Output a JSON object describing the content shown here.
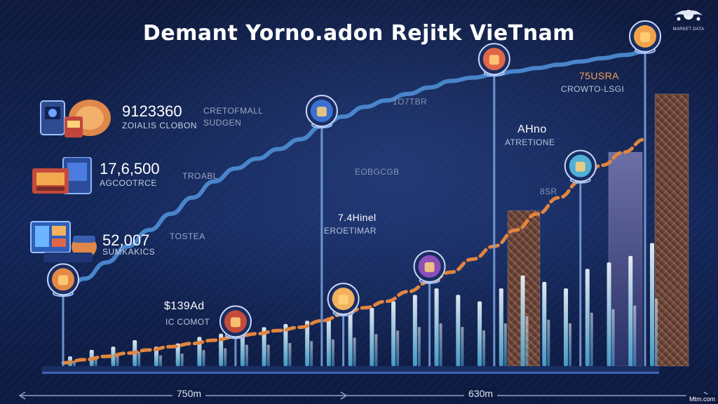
{
  "title": "Demant Yorno.adon Rejitk VieTnam",
  "brand": {
    "icon": "dragon-emblem-icon",
    "text": "MARKET DATA"
  },
  "stats": [
    {
      "value": "9123360",
      "label": "ZOIALIS CLOBON",
      "note": "CRETOFMALL SUDGEN",
      "icon": "gamer-console-icon"
    },
    {
      "value": "17,6,500",
      "label": "AGCOOTRCE",
      "note": "TROABL",
      "icon": "tablet-device-icon"
    },
    {
      "value": "52,007",
      "label": "SUMKAKICS",
      "note": "TOSTEA",
      "icon": "dashboard-screen-icon"
    }
  ],
  "labels": {
    "a": "$139Ad",
    "a_sub": "IC COMOT",
    "b": "7.4Hinel",
    "b_sub": "EROETIMAR",
    "c": "EOBGCGB",
    "d": "1O7TBR",
    "e": "AHno",
    "e_sub": "ATRETIONE",
    "f": "75USRA",
    "f_sub": "CROWTO-LSGI",
    "g": "8SR",
    "axis_left": "750m",
    "axis_right": "630m",
    "corner": "Mtm.com"
  },
  "colors": {
    "background": "#0b1635",
    "curve_blue": "#4f8fd6",
    "curve_orange": "#e2853e",
    "bar": "#bfe6f7",
    "tower": "#7a4d3a"
  },
  "chart_data": {
    "type": "line",
    "title": "Demant Yorno.adon Rejitk VieTnam",
    "xlabel": "",
    "ylabel": "",
    "x": [
      1,
      2,
      3,
      4,
      5,
      6,
      7,
      8,
      9,
      10,
      11,
      12,
      13,
      14,
      15,
      16,
      17,
      18,
      19,
      20,
      21,
      22,
      23,
      24,
      25,
      26,
      27,
      28
    ],
    "ylim": [
      0,
      100
    ],
    "grid": false,
    "series": [
      {
        "values": [
          22,
          27,
          32,
          37,
          42,
          47,
          52,
          57,
          61,
          64,
          67,
          70,
          74,
          77,
          80,
          82,
          84,
          86,
          88,
          89,
          90,
          91,
          92,
          93,
          94,
          95,
          96,
          97
        ]
      },
      {
        "values": [
          1,
          2,
          3,
          4,
          5,
          6,
          7,
          8,
          9,
          10,
          11,
          12,
          14,
          16,
          18,
          20,
          23,
          26,
          29,
          33,
          37,
          42,
          47,
          52,
          57,
          62,
          66,
          70
        ]
      }
    ],
    "bars": [
      {
        "name": "columns-back",
        "values": [
          3,
          5,
          6,
          8,
          6,
          7,
          9,
          10,
          12,
          12,
          13,
          14,
          15,
          16,
          18,
          20,
          22,
          24,
          22,
          20,
          24,
          28,
          26,
          24,
          30,
          32,
          34,
          38
        ]
      }
    ],
    "towers": [
      {
        "name": "tower-1",
        "value": 48
      },
      {
        "name": "tower-2",
        "value": 66
      },
      {
        "name": "tower-3",
        "value": 84
      }
    ]
  }
}
